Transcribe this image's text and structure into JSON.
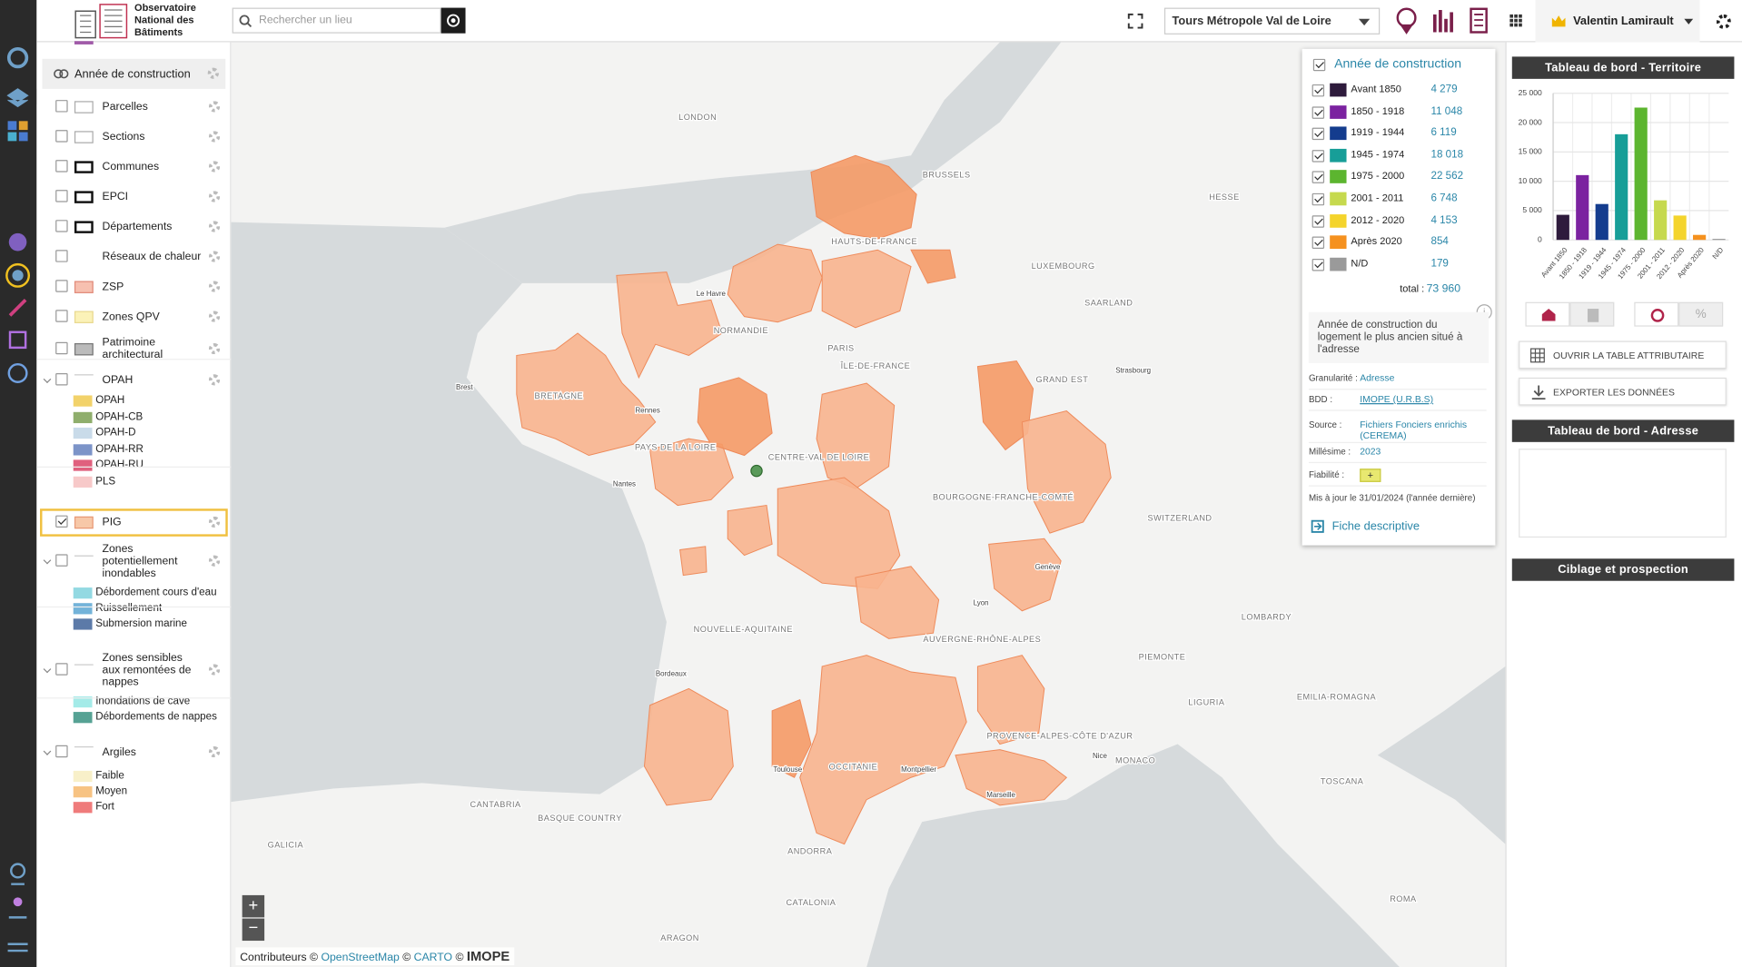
{
  "header": {
    "logo_lines": [
      "Observatoire",
      "National des",
      "Bâtiments"
    ],
    "search_placeholder": "Rechercher un lieu",
    "territory": "Tours Métropole Val de Loire",
    "user": "Valentin Lamirault"
  },
  "layers": {
    "header": "Année de construction",
    "items": [
      {
        "label": "Parcelles"
      },
      {
        "label": "Sections"
      },
      {
        "label": "Communes"
      },
      {
        "label": "EPCI"
      },
      {
        "label": "Départements"
      },
      {
        "label": "Réseaux de chaleur"
      },
      {
        "label": "ZSP"
      },
      {
        "label": "Zones QPV"
      },
      {
        "label": "Patrimoine architectural"
      },
      {
        "label": "OPAH",
        "sublegend": [
          {
            "label": "OPAH",
            "color": "#f2d26a"
          },
          {
            "label": "OPAH-CB",
            "color": "#8fae6c"
          },
          {
            "label": "OPAH-D",
            "color": "#c9dbe9"
          },
          {
            "label": "OPAH-RR",
            "color": "#7c94c8"
          },
          {
            "label": "OPAH-RU",
            "color": "#e0607e"
          },
          {
            "label": "PLS",
            "color": "#f7c9c9"
          }
        ]
      },
      {
        "label": "PIG",
        "checked": true
      },
      {
        "label": "Zones potentiellement inondables",
        "sublegend": [
          {
            "label": "Débordement cours d'eau",
            "color": "#93d9e2"
          },
          {
            "label": "Ruissellement",
            "color": "#73b3d9"
          },
          {
            "label": "Submersion marine",
            "color": "#5c7aa8"
          }
        ]
      },
      {
        "label": "Zones sensibles aux remontées de nappes",
        "sublegend": [
          {
            "label": "Inondations de cave",
            "color": "#a4ebe8"
          },
          {
            "label": "Débordements de nappes",
            "color": "#56a294"
          }
        ]
      },
      {
        "label": "Argiles",
        "sublegend": [
          {
            "label": "Faible",
            "color": "#f8f0c9"
          },
          {
            "label": "Moyen",
            "color": "#f7c383"
          },
          {
            "label": "Fort",
            "color": "#ef7b7b"
          }
        ]
      }
    ]
  },
  "legend": {
    "title": "Année de construction",
    "total_label": "total :",
    "total": "73 960",
    "description": "Année de construction du logement le plus ancien situé à l'adresse",
    "info": [
      {
        "label": "Granularité :",
        "value": "Adresse"
      },
      {
        "label": "BDD :",
        "value": "IMOPE (U.R.B.S)"
      },
      {
        "label": "Source :",
        "value": "Fichiers Fonciers enrichis (CEREMA)"
      },
      {
        "label": "Millésime :",
        "value": "2023"
      },
      {
        "label": "Fiabilité :",
        "value": "+"
      }
    ],
    "updated": "Mis à jour le 31/01/2024 (l'année dernière)",
    "link": "Fiche descriptive"
  },
  "chart_data": {
    "type": "bar",
    "categories": [
      "Avant 1850",
      "1850 - 1918",
      "1919 - 1944",
      "1945 - 1974",
      "1975 - 2000",
      "2001 - 2011",
      "2012 - 2020",
      "Après 2020",
      "N/D"
    ],
    "values": [
      4279,
      11048,
      6119,
      18018,
      22562,
      6748,
      4153,
      854,
      179
    ],
    "value_labels": [
      "4 279",
      "11 048",
      "6 119",
      "18 018",
      "22 562",
      "6 748",
      "4 153",
      "854",
      "179"
    ],
    "colors": [
      "#2e1b3c",
      "#7b22a0",
      "#143c8e",
      "#179e98",
      "#5cb52f",
      "#c6d94e",
      "#f4d42c",
      "#f5911f",
      "#9a9a9a"
    ],
    "ylim": [
      0,
      25000
    ],
    "yticks": [
      0,
      {
        "value": 5000,
        "label": "5 000"
      },
      {
        "value": 10000,
        "label": "10 000"
      },
      {
        "value": 15000,
        "label": "15 000"
      },
      {
        "value": 20000,
        "label": "20 000"
      },
      {
        "value": 25000,
        "label": "25 000"
      }
    ],
    "grid": true
  },
  "dashboard": {
    "territory_title": "Tableau de bord - Territoire",
    "percent_button": "%",
    "open_table": "OUVRIR LA TABLE ATTRIBUTAIRE",
    "export": "EXPORTER LES DONNÉES",
    "address_title": "Tableau de bord - Adresse",
    "targeting_title": "Ciblage et prospection"
  },
  "map": {
    "labels": [
      "LONDON",
      "NORMANDIE",
      "BRETAGNE",
      "PAYS DE LA LOIRE",
      "CENTRE-VAL DE LOIRE",
      "ÎLE-DE-FRANCE",
      "HAUTS-DE-FRANCE",
      "GRAND EST",
      "BOURGOGNE-FRANCHE-COMTÉ",
      "NOUVELLE-AQUITAINE",
      "AUVERGNE-RHÔNE-ALPES",
      "OCCITANIE",
      "PROVENCE-ALPES-CÔTE D'AZUR",
      "PARIS",
      "LUXEMBOURG",
      "SAARLAND",
      "HESSE",
      "SWITZERLAND",
      "PIEMONTE",
      "LOMBARDY",
      "LIGURIA",
      "TOSCANA",
      "ANDORRA",
      "CATALONIA",
      "ARAGON",
      "MONACO",
      "BASQUE COUNTRY",
      "GALICIA",
      "CANTABRIA",
      "BRUSSELS",
      "EMILIA-ROMAGNA",
      "ROMA",
      "Bordeaux",
      "Lyon",
      "Marseille",
      "Toulouse",
      "Nantes",
      "Rennes",
      "Genève",
      "Montpellier",
      "Nice",
      "Strasbourg",
      "Le Havre",
      "Brest"
    ],
    "zoom_in": "+",
    "zoom_out": "−",
    "attribution": [
      "Contributeurs ©",
      "OpenStreetMap",
      "©",
      "CARTO",
      "©",
      "IMOPE"
    ]
  }
}
